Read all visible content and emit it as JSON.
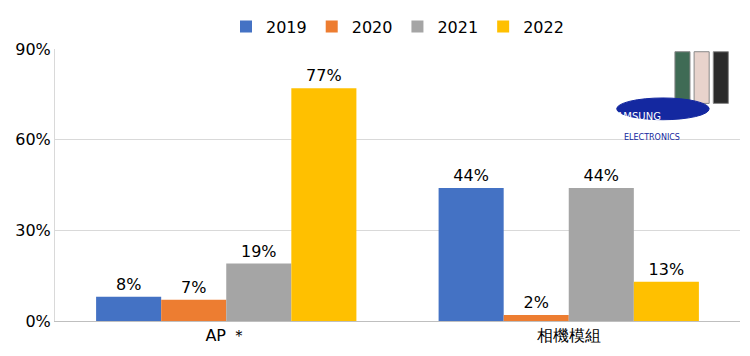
{
  "chart_data": {
    "type": "bar",
    "categories": [
      "AP ＊",
      "相機模組"
    ],
    "series": [
      {
        "name": "2019",
        "color": "#4472c4",
        "values": [
          8,
          44
        ],
        "value_labels": [
          "8%",
          "44%"
        ]
      },
      {
        "name": "2020",
        "color": "#ed7d31",
        "values": [
          7,
          2
        ],
        "value_labels": [
          "7%",
          "2%"
        ]
      },
      {
        "name": "2021",
        "color": "#a5a5a5",
        "values": [
          19,
          44
        ],
        "value_labels": [
          "19%",
          "44%"
        ]
      },
      {
        "name": "2022",
        "color": "#ffc000",
        "values": [
          77,
          13
        ],
        "value_labels": [
          "77%",
          "13%"
        ]
      }
    ],
    "ylim": [
      0,
      90
    ],
    "yticks": [
      {
        "value": 0,
        "label": "0%"
      },
      {
        "value": 30,
        "label": "30%"
      },
      {
        "value": 60,
        "label": "60%"
      },
      {
        "value": 90,
        "label": "90%"
      }
    ],
    "grid": true,
    "legend": "top",
    "data_labels": true,
    "annotations": [
      "SAMSUNG",
      "ELECTRONICS"
    ]
  }
}
